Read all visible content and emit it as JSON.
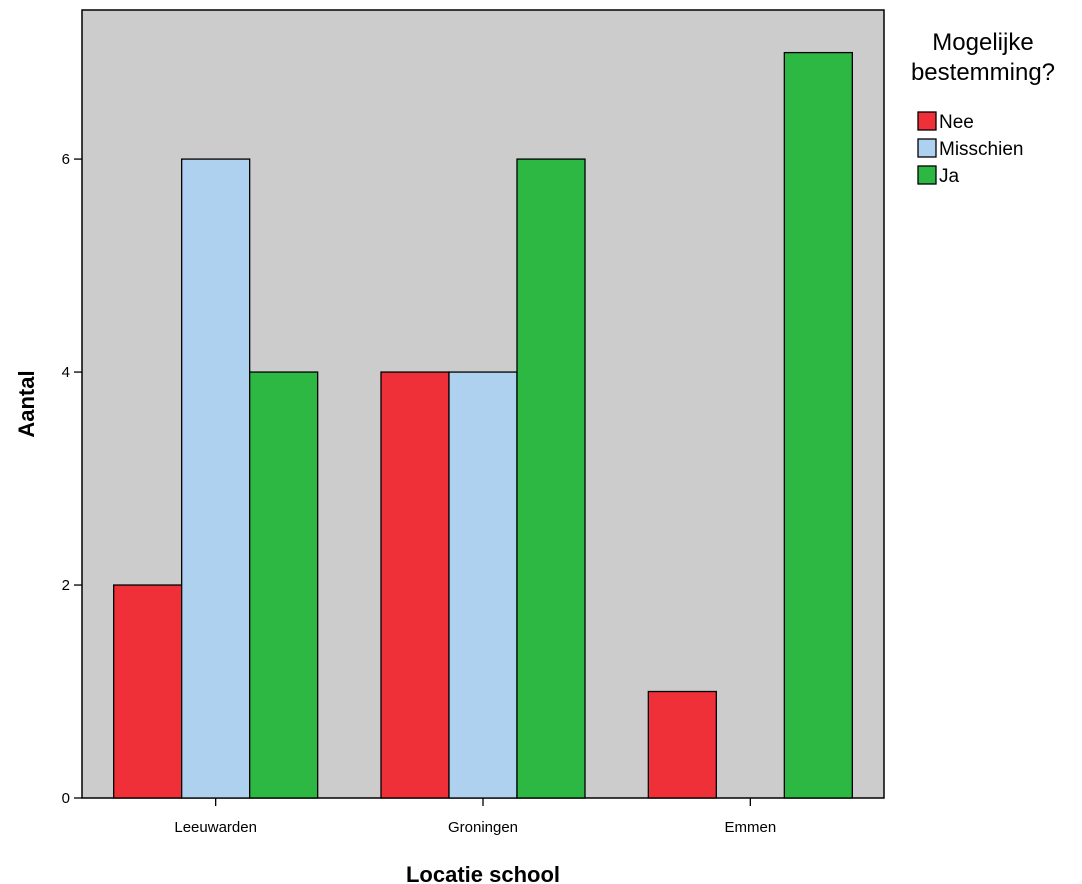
{
  "chart_data": {
    "type": "bar",
    "title": "",
    "xlabel": "Locatie school",
    "ylabel": "Aantal",
    "categories": [
      "Leeuwarden",
      "Groningen",
      "Emmen"
    ],
    "series": [
      {
        "name": "Nee",
        "values": [
          2,
          4,
          1
        ]
      },
      {
        "name": "Misschien",
        "values": [
          6,
          4,
          0
        ]
      },
      {
        "name": "Ja",
        "values": [
          4,
          6,
          7
        ]
      }
    ],
    "ylim": [
      0,
      7.4
    ],
    "yticks": [
      0,
      2,
      4,
      6
    ],
    "grid": false,
    "legend": {
      "title_lines": [
        "Mogelijke",
        "bestemming?"
      ],
      "placement": "right"
    }
  },
  "colors": {
    "Nee": "#f03039",
    "Misschien": "#afd1f0",
    "Ja": "#2db844",
    "plot_background": "#cccccc"
  }
}
